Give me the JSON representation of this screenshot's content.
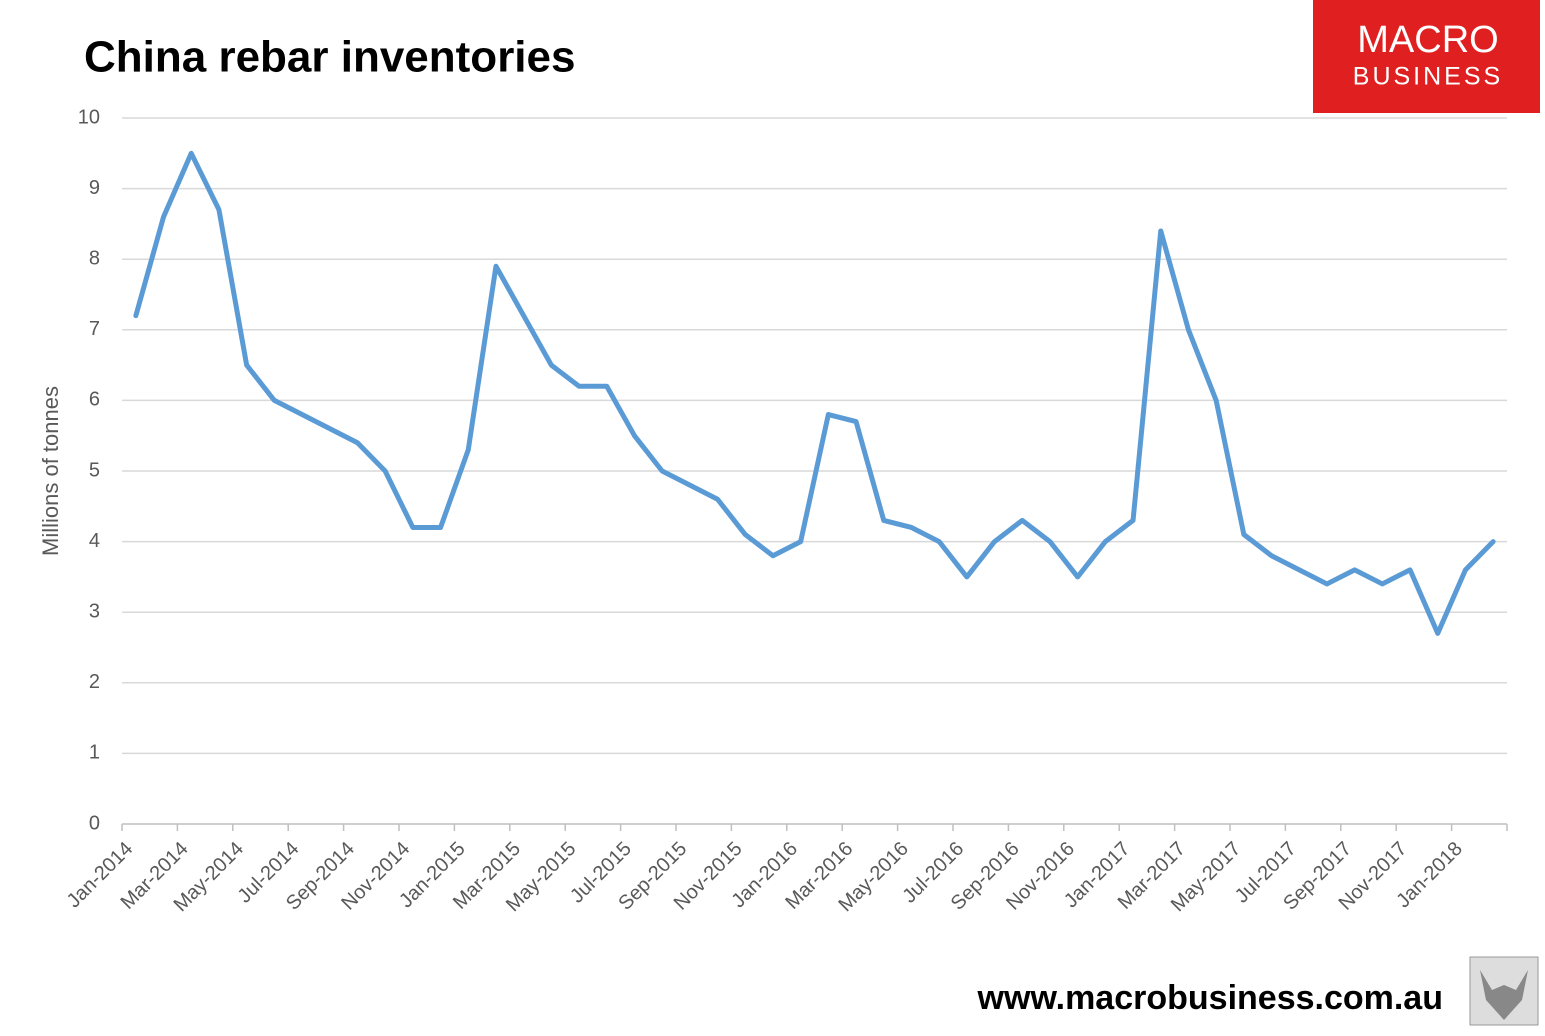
{
  "chart_data": {
    "type": "line",
    "title": "China rebar inventories",
    "y_label": "Millions of tonnes",
    "categories": [
      "Jan-2014",
      null,
      "Mar-2014",
      null,
      "May-2014",
      null,
      "Jul-2014",
      null,
      "Sep-2014",
      null,
      "Nov-2014",
      null,
      "Jan-2015",
      null,
      "Mar-2015",
      null,
      "May-2015",
      null,
      "Jul-2015",
      null,
      "Sep-2015",
      null,
      "Nov-2015",
      null,
      "Jan-2016",
      null,
      "Mar-2016",
      null,
      "May-2016",
      null,
      "Jul-2016",
      null,
      "Sep-2016",
      null,
      "Nov-2016",
      null,
      "Jan-2017",
      null,
      "Mar-2017",
      null,
      "May-2017",
      null,
      "Jul-2017",
      null,
      "Sep-2017",
      null,
      "Nov-2017",
      null,
      "Jan-2018",
      null
    ],
    "values": [
      7.2,
      8.6,
      9.5,
      8.7,
      6.5,
      6.0,
      5.8,
      5.6,
      5.4,
      5.0,
      4.2,
      4.2,
      5.3,
      7.9,
      7.2,
      6.5,
      6.2,
      6.2,
      5.5,
      5.0,
      4.8,
      4.6,
      4.1,
      3.8,
      4.0,
      5.8,
      5.7,
      4.3,
      4.2,
      4.0,
      3.5,
      4.0,
      4.3,
      4.0,
      3.5,
      4.0,
      4.3,
      8.4,
      7.0,
      6.0,
      4.1,
      3.8,
      3.6,
      3.4,
      3.6,
      3.4,
      3.6,
      2.7,
      3.6,
      4.0
    ],
    "color": "#5b9bd5",
    "ylim": [
      0,
      10
    ],
    "yticks": [
      0,
      1,
      2,
      3,
      4,
      5,
      6,
      7,
      8,
      9,
      10
    ],
    "grid": true
  },
  "logo": {
    "line1": "MACRO",
    "line2": "BUSINESS"
  },
  "footer": "www.macrobusiness.com.au"
}
